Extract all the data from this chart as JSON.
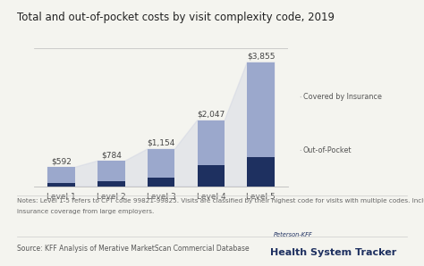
{
  "title": "Total and out-of-pocket costs by visit complexity code, 2019",
  "categories": [
    "Level 1",
    "Level 2",
    "Level 3",
    "Level 4",
    "Level 5"
  ],
  "total_values": [
    592,
    784,
    1154,
    2047,
    3855
  ],
  "oop_values": [
    100,
    150,
    260,
    650,
    900
  ],
  "total_labels": [
    "$592",
    "$784",
    "$1,154",
    "$2,047",
    "$3,855"
  ],
  "color_insurance": "#9ba8cc",
  "color_oop": "#1e3060",
  "color_polygon": "#c8cde0",
  "legend_insurance": "Covered by Insurance",
  "legend_oop": "Out-of-Pocket",
  "notes_line1": "Notes: Level 1-5 refers to CPT code 99821-99825. Visits are classified by their highest code for visits with multiple codes. Includes enrollees with private",
  "notes_line2": "insurance coverage from large employers.",
  "source": "Source: KFF Analysis of Merative MarketScan Commercial Database",
  "background_color": "#f4f4ef",
  "title_fontsize": 8.5,
  "label_fontsize": 6.5,
  "tick_fontsize": 6.5,
  "notes_fontsize": 5.2,
  "source_fontsize": 5.5,
  "bar_width": 0.55,
  "ylim": [
    0,
    4300
  ],
  "annotation_fontsize": 5.8
}
